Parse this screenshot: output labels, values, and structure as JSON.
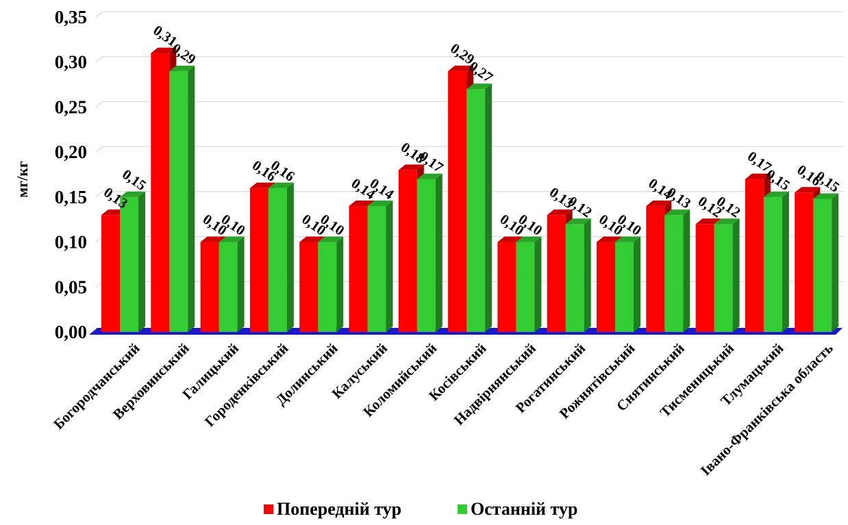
{
  "chart_data": {
    "type": "bar",
    "ylabel": "мг/кг",
    "ylim": [
      0,
      0.35
    ],
    "yticks": [
      "0,00",
      "0,05",
      "0,10",
      "0,15",
      "0,20",
      "0,25",
      "0,30",
      "0,35"
    ],
    "grid": true,
    "legend_position": "bottom",
    "categories": [
      "Богородчанський",
      "Верховинський",
      "Галицький",
      "Городенківський",
      "Долинський",
      "Калуський",
      "Коломийський",
      "Косівський",
      "Надвірнянський",
      "Рогатинський",
      "Рожнятівський",
      "Снятинський",
      "Тисменицький",
      "Тлумацький",
      "Івано-Франківська область"
    ],
    "series": [
      {
        "name": "Попередній тур",
        "color": "#ff0000",
        "values": [
          0.13,
          0.31,
          0.1,
          0.16,
          0.1,
          0.14,
          0.18,
          0.29,
          0.1,
          0.13,
          0.1,
          0.14,
          0.12,
          0.17,
          0.155
        ],
        "labels": [
          "0,13",
          "0,31",
          "0,10",
          "0,16",
          "0,10",
          "0,14",
          "0,18",
          "0,29",
          "0,10",
          "0,13",
          "0,10",
          "0,14",
          "0,12",
          "0,17",
          "0,16"
        ]
      },
      {
        "name": "Останній тур",
        "color": "#33cc33",
        "values": [
          0.15,
          0.29,
          0.1,
          0.16,
          0.1,
          0.14,
          0.17,
          0.27,
          0.1,
          0.12,
          0.1,
          0.13,
          0.12,
          0.15,
          0.148
        ],
        "labels": [
          "0,15",
          "0,29",
          "0,10",
          "0,16",
          "0,10",
          "0,14",
          "0,17",
          "0,27",
          "0,10",
          "0,12",
          "0,10",
          "0,13",
          "0,12",
          "0,15",
          "0,15"
        ]
      }
    ]
  }
}
